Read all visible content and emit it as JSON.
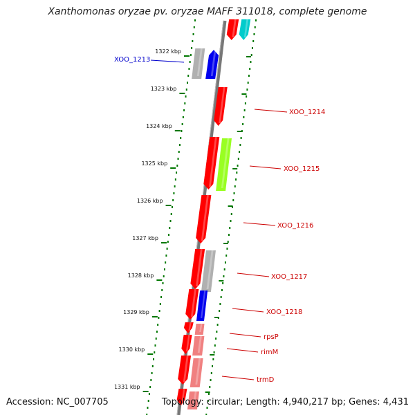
{
  "title": "Xanthomonas oryzae pv. oryzae MAFF 311018, complete genome",
  "footer": {
    "accession": "Accession: NC_007705",
    "summary": "Topology: circular; Length: 4,940,217 bp; Genes: 4,431"
  },
  "colors": {
    "backbone": "#888888",
    "ticks": "#007700",
    "red": "#ff0000",
    "pink": "#f08080",
    "cyan": "#00cccc",
    "grey": "#b0b0b0",
    "blue": "#0000ee",
    "lime": "#99ff22"
  },
  "kbp_ticks": [
    "1322 kbp",
    "1323 kbp",
    "1324 kbp",
    "1325 kbp",
    "1326 kbp",
    "1327 kbp",
    "1328 kbp",
    "1329 kbp",
    "1330 kbp",
    "1331 kbp"
  ],
  "gene_labels": [
    {
      "name": "XOO_1213",
      "color": "#0000cc"
    },
    {
      "name": "XOO_1214",
      "color": "#cc0000"
    },
    {
      "name": "XOO_1215",
      "color": "#cc0000"
    },
    {
      "name": "XOO_1216",
      "color": "#cc0000"
    },
    {
      "name": "XOO_1217",
      "color": "#cc0000"
    },
    {
      "name": "XOO_1218",
      "color": "#cc0000"
    },
    {
      "name": "rpsP",
      "color": "#cc0000"
    },
    {
      "name": "rimM",
      "color": "#cc0000"
    },
    {
      "name": "trmD",
      "color": "#cc0000"
    }
  ]
}
